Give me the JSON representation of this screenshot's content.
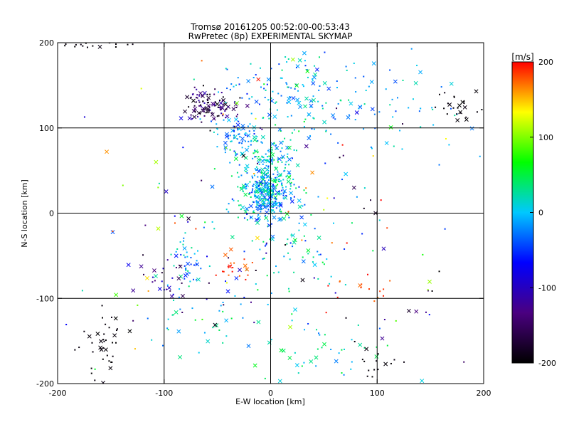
{
  "chart_data": {
    "type": "scatter",
    "title": "Tromsø 20161205 00:52:00-00:53:43",
    "subtitle": "RwPretec (8p) EXPERIMENTAL SKYMAP",
    "xlabel": "E-W location [km]",
    "ylabel": "N-S location [km]",
    "xlim": [
      -200,
      200
    ],
    "ylim": [
      -200,
      200
    ],
    "x_ticks": [
      -200,
      -100,
      0,
      100,
      200
    ],
    "y_ticks": [
      -200,
      -100,
      0,
      100,
      200
    ],
    "x_tick_labels": [
      "-200",
      "-100",
      "0",
      "100",
      "200"
    ],
    "y_tick_labels": [
      "-200",
      "-100",
      "0",
      "100",
      "200"
    ],
    "grid": true,
    "colorbar": {
      "label": "[m/s]",
      "range": [
        -200,
        200
      ],
      "ticks": [
        200,
        100,
        0,
        -100,
        -200
      ],
      "tick_labels": [
        "200",
        "100",
        "0",
        "-100",
        "-200"
      ],
      "placement": "right",
      "colors": [
        "#000000",
        "#4a0080",
        "#0000ff",
        "#00c8ff",
        "#00ff00",
        "#ffff00",
        "#ff0000"
      ]
    },
    "clusters": [
      {
        "x": 0,
        "y": 45,
        "sx": 14,
        "sy": 25,
        "n": 260,
        "vmin": -40,
        "vmax": 60
      },
      {
        "x": -5,
        "y": 20,
        "sx": 12,
        "sy": 14,
        "n": 180,
        "vmin": -60,
        "vmax": 40
      },
      {
        "x": -30,
        "y": 90,
        "sx": 12,
        "sy": 12,
        "n": 70,
        "vmin": -60,
        "vmax": 20
      },
      {
        "x": -57,
        "y": 125,
        "sx": 14,
        "sy": 10,
        "n": 110,
        "vmin": -200,
        "vmax": -100
      },
      {
        "x": 15,
        "y": 150,
        "sx": 30,
        "sy": 20,
        "n": 90,
        "vmin": -60,
        "vmax": 40
      },
      {
        "x": 40,
        "y": 120,
        "sx": 30,
        "sy": 25,
        "n": 50,
        "vmin": -40,
        "vmax": 60
      },
      {
        "x": -80,
        "y": -55,
        "sx": 8,
        "sy": 15,
        "n": 40,
        "vmin": -60,
        "vmax": 40
      },
      {
        "x": -160,
        "y": -150,
        "sx": 10,
        "sy": 20,
        "n": 40,
        "vmin": -200,
        "vmax": -190
      },
      {
        "x": 120,
        "y": 125,
        "sx": 45,
        "sy": 30,
        "n": 55,
        "vmin": -50,
        "vmax": 30
      },
      {
        "x": 175,
        "y": 125,
        "sx": 12,
        "sy": 10,
        "n": 25,
        "vmin": -200,
        "vmax": -190
      },
      {
        "x": 20,
        "y": -40,
        "sx": 25,
        "sy": 35,
        "n": 70,
        "vmin": -60,
        "vmax": 60
      },
      {
        "x": 50,
        "y": -165,
        "sx": 40,
        "sy": 20,
        "n": 45,
        "vmin": -40,
        "vmax": 60
      },
      {
        "x": 97,
        "y": -170,
        "sx": 10,
        "sy": 15,
        "n": 15,
        "vmin": -200,
        "vmax": -190
      },
      {
        "x": -60,
        "y": -120,
        "sx": 30,
        "sy": 30,
        "n": 40,
        "vmin": -40,
        "vmax": 60
      },
      {
        "x": -30,
        "y": -70,
        "sx": 12,
        "sy": 12,
        "n": 20,
        "vmin": 170,
        "vmax": 200
      },
      {
        "x": -105,
        "y": -75,
        "sx": 15,
        "sy": 15,
        "n": 25,
        "vmin": -180,
        "vmax": -60
      },
      {
        "x": -170,
        "y": 198,
        "sx": 25,
        "sy": 2,
        "n": 18,
        "vmin": -200,
        "vmax": -190
      },
      {
        "x": 90,
        "y": -90,
        "sx": 20,
        "sy": 10,
        "n": 12,
        "vmin": 170,
        "vmax": 200
      },
      {
        "x": 0,
        "y": 0,
        "sx": 110,
        "sy": 110,
        "n": 170,
        "vmin": -200,
        "vmax": 200
      }
    ]
  }
}
